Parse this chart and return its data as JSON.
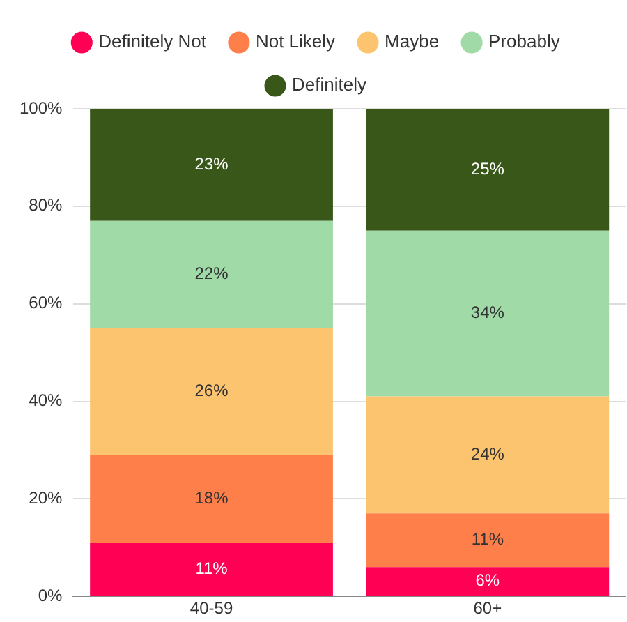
{
  "chart_data": {
    "type": "bar",
    "stacked": true,
    "categories": [
      "40-59",
      "60+"
    ],
    "series": [
      {
        "name": "Definitely Not",
        "color": "#ff0054",
        "values": [
          11,
          6
        ],
        "value_labels": [
          "11%",
          "6%"
        ]
      },
      {
        "name": "Not Likely",
        "color": "#ff7f4a",
        "values": [
          18,
          11
        ],
        "value_labels": [
          "18%",
          "11%"
        ]
      },
      {
        "name": "Maybe",
        "color": "#fdc46f",
        "values": [
          26,
          24
        ],
        "value_labels": [
          "26%",
          "24%"
        ]
      },
      {
        "name": "Probably",
        "color": "#9fdaa7",
        "values": [
          22,
          34
        ],
        "value_labels": [
          "22%",
          "34%"
        ]
      },
      {
        "name": "Definitely",
        "color": "#395718",
        "values": [
          23,
          25
        ],
        "value_labels": [
          "23%",
          "25%"
        ]
      }
    ],
    "ylim": [
      0,
      100
    ],
    "yticks": [
      {
        "value": 0,
        "label": "0%"
      },
      {
        "value": 20,
        "label": "20%"
      },
      {
        "value": 40,
        "label": "40%"
      },
      {
        "value": 60,
        "label": "60%"
      },
      {
        "value": 80,
        "label": "80%"
      },
      {
        "value": 100,
        "label": "100%"
      }
    ],
    "grid": "y",
    "legend": "top"
  }
}
